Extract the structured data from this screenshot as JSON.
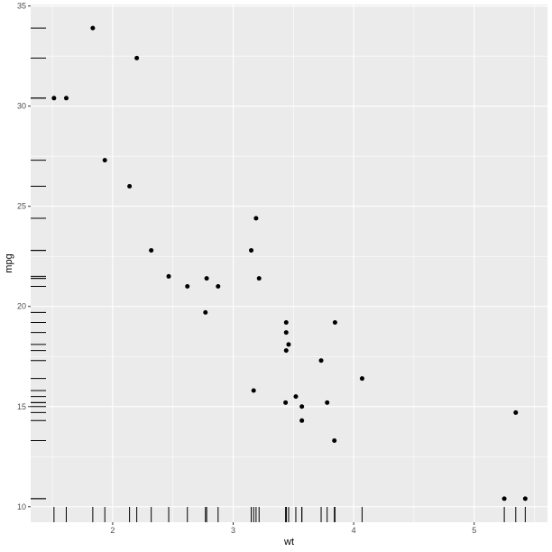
{
  "chart_data": {
    "type": "scatter",
    "title": "",
    "xlabel": "wt",
    "ylabel": "mpg",
    "xlim": [
      1.3195,
      5.6085
    ],
    "ylim": [
      9.225,
      35.075
    ],
    "x_ticks": [
      2,
      3,
      4,
      5
    ],
    "y_ticks": [
      10,
      15,
      20,
      25,
      30,
      35
    ],
    "x_tick_labels": [
      "2",
      "3",
      "4",
      "5"
    ],
    "y_tick_labels": [
      "10",
      "15",
      "20",
      "25",
      "30",
      "35"
    ],
    "grid": true,
    "rug": true,
    "colors": {
      "panel": "#ebebeb",
      "grid_major": "#ffffff",
      "point": "#000000",
      "rug": "#000000"
    },
    "points": [
      {
        "x": 2.62,
        "y": 21.0
      },
      {
        "x": 2.875,
        "y": 21.0
      },
      {
        "x": 2.32,
        "y": 22.8
      },
      {
        "x": 3.215,
        "y": 21.4
      },
      {
        "x": 3.44,
        "y": 18.7
      },
      {
        "x": 3.46,
        "y": 18.1
      },
      {
        "x": 3.57,
        "y": 14.3
      },
      {
        "x": 3.19,
        "y": 24.4
      },
      {
        "x": 3.15,
        "y": 22.8
      },
      {
        "x": 3.44,
        "y": 19.2
      },
      {
        "x": 3.44,
        "y": 17.8
      },
      {
        "x": 4.07,
        "y": 16.4
      },
      {
        "x": 3.73,
        "y": 17.3
      },
      {
        "x": 3.78,
        "y": 15.2
      },
      {
        "x": 5.25,
        "y": 10.4
      },
      {
        "x": 5.424,
        "y": 10.4
      },
      {
        "x": 5.345,
        "y": 14.7
      },
      {
        "x": 2.2,
        "y": 32.4
      },
      {
        "x": 1.615,
        "y": 30.4
      },
      {
        "x": 1.835,
        "y": 33.9
      },
      {
        "x": 2.465,
        "y": 21.5
      },
      {
        "x": 3.52,
        "y": 15.5
      },
      {
        "x": 3.435,
        "y": 15.2
      },
      {
        "x": 3.84,
        "y": 13.3
      },
      {
        "x": 3.845,
        "y": 19.2
      },
      {
        "x": 1.935,
        "y": 27.3
      },
      {
        "x": 2.14,
        "y": 26.0
      },
      {
        "x": 1.513,
        "y": 30.4
      },
      {
        "x": 3.17,
        "y": 15.8
      },
      {
        "x": 2.77,
        "y": 19.7
      },
      {
        "x": 3.57,
        "y": 15.0
      },
      {
        "x": 2.78,
        "y": 21.4
      }
    ]
  }
}
